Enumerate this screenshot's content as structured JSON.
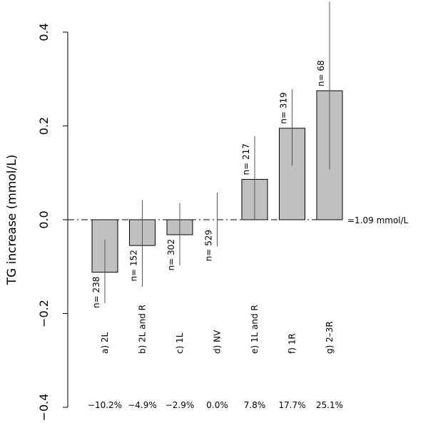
{
  "chart_data": {
    "type": "bar",
    "title": "",
    "xlabel": "",
    "ylabel": "TG increase (mmol/L)",
    "ylim": [
      -0.4,
      0.4
    ],
    "yticks": [
      -0.4,
      -0.2,
      0.0,
      0.2,
      0.4
    ],
    "ytick_labels": [
      "−0.4",
      "−0.2",
      "0.0",
      "0.2",
      "0.4"
    ],
    "reference_line": {
      "value": 0.0,
      "label": "=1.09 mmol/L"
    },
    "categories": [
      "a) 2L",
      "b) 2L and R",
      "c) 1L",
      "d) NV",
      "e) 1L and R",
      "f) 1R",
      "g) 2–3R"
    ],
    "values": [
      -0.112,
      -0.055,
      -0.032,
      0.0,
      0.086,
      0.195,
      0.275
    ],
    "ci_low": [
      -0.178,
      -0.143,
      -0.098,
      -0.057,
      0.0,
      0.115,
      0.107
    ],
    "ci_high": [
      -0.042,
      0.042,
      0.036,
      0.058,
      0.178,
      0.278,
      0.465
    ],
    "n_labels": [
      "n= 238",
      "n= 152",
      "n= 302",
      "n= 529",
      "n= 217",
      "n= 319",
      "n= 68"
    ],
    "percent_labels": [
      "−10.2%",
      "−4.9%",
      "−2.9%",
      "0.0%",
      "7.8%",
      "17.7%",
      "25.1%"
    ],
    "colors": {
      "bar_fill": "#c0c0c0",
      "bar_stroke": "#000000",
      "ci_line": "#555555"
    }
  }
}
